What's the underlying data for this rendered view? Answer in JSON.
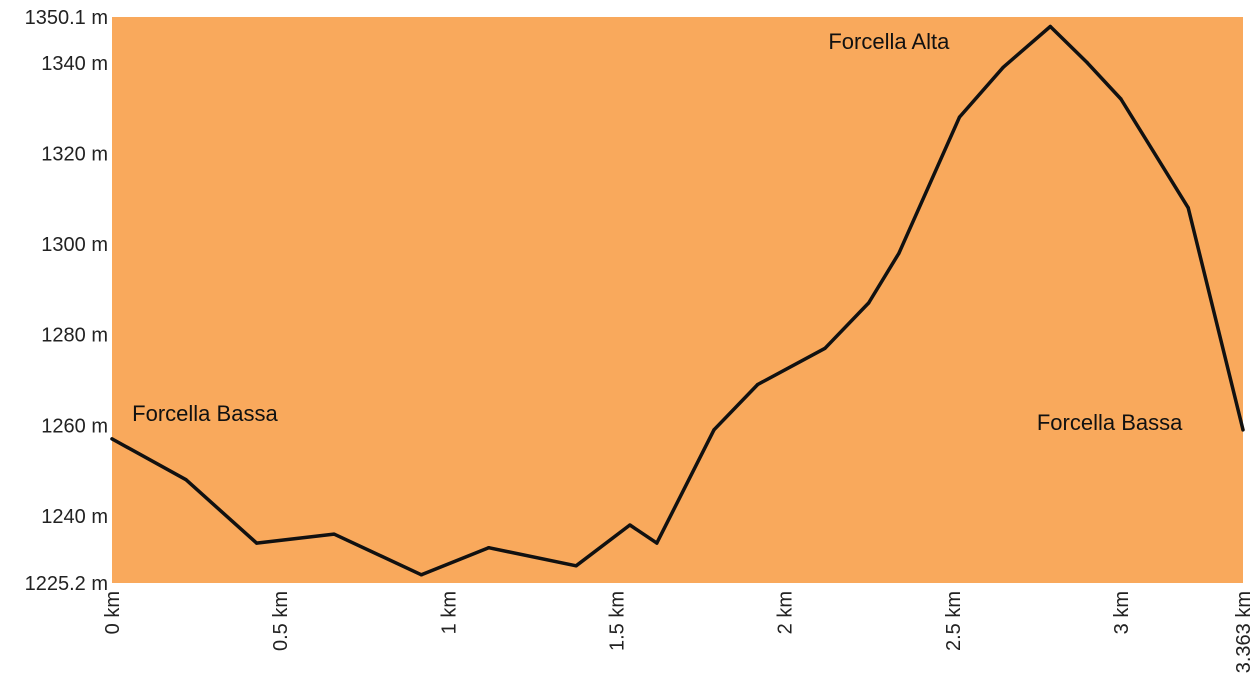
{
  "chart_data": {
    "type": "area",
    "title": "",
    "xlabel": "",
    "ylabel": "",
    "xlim": [
      0,
      3.363
    ],
    "ylim": [
      1225.2,
      1350.1
    ],
    "grid": false,
    "colors": {
      "fill": "#F9A95C",
      "line": "#111111"
    },
    "y_ticks": [
      {
        "value": 1225.2,
        "label": "1225.2 m"
      },
      {
        "value": 1240,
        "label": "1240 m"
      },
      {
        "value": 1260,
        "label": "1260 m"
      },
      {
        "value": 1280,
        "label": "1280 m"
      },
      {
        "value": 1300,
        "label": "1300 m"
      },
      {
        "value": 1320,
        "label": "1320 m"
      },
      {
        "value": 1340,
        "label": "1340 m"
      },
      {
        "value": 1350.1,
        "label": "1350.1 m"
      }
    ],
    "x_ticks": [
      {
        "value": 0,
        "label": "0 km"
      },
      {
        "value": 0.5,
        "label": "0.5 km"
      },
      {
        "value": 1,
        "label": "1 km"
      },
      {
        "value": 1.5,
        "label": "1.5 km"
      },
      {
        "value": 2,
        "label": "2 km"
      },
      {
        "value": 2.5,
        "label": "2.5 km"
      },
      {
        "value": 3,
        "label": "3 km"
      },
      {
        "value": 3.363,
        "label": "3.363 km"
      }
    ],
    "series": [
      {
        "x": [
          0,
          0.22,
          0.43,
          0.66,
          0.92,
          1.12,
          1.38,
          1.54,
          1.62,
          1.79,
          1.92,
          2.12,
          2.25,
          2.34,
          2.52,
          2.65,
          2.79,
          2.9,
          3.0,
          3.2,
          3.363
        ],
        "y": [
          1257,
          1248,
          1234,
          1236,
          1227,
          1233,
          1229,
          1238,
          1234,
          1259,
          1269,
          1277,
          1287,
          1298,
          1328,
          1339,
          1348,
          1340,
          1332,
          1308,
          1259
        ]
      }
    ],
    "annotations": [
      {
        "text": "Forcella Bassa",
        "x": 0.06,
        "y": 1261
      },
      {
        "text": "Forcella Alta",
        "x": 2.13,
        "y": 1343
      },
      {
        "text": "Forcella Bassa",
        "x": 2.75,
        "y": 1259
      }
    ]
  }
}
